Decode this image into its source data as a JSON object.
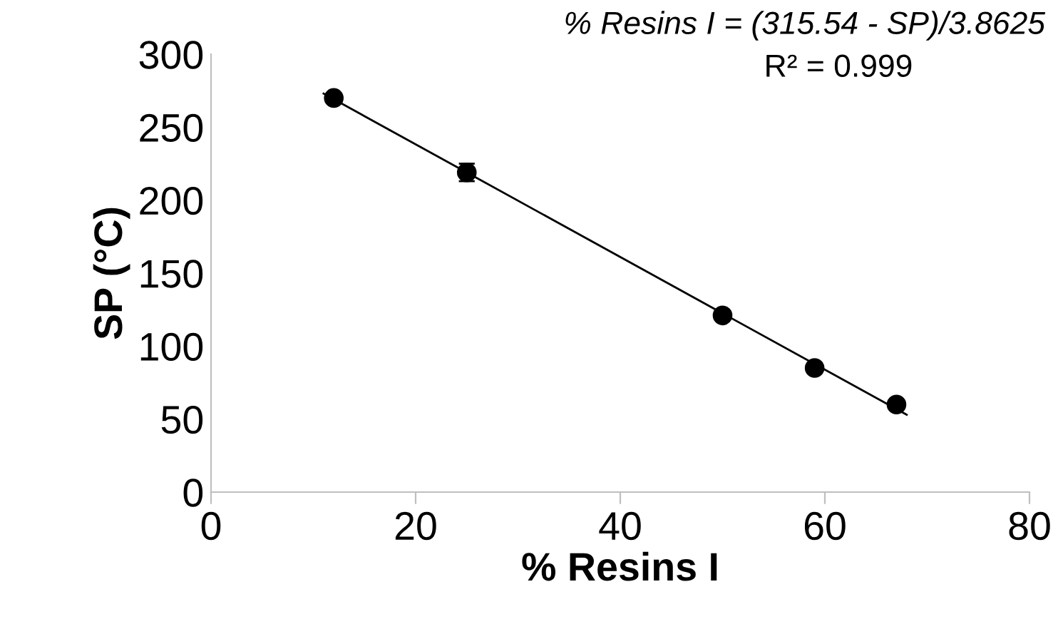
{
  "chart_data": {
    "type": "scatter",
    "xlabel": "% Resins I",
    "ylabel": "SP (°C)",
    "x": [
      12,
      25,
      50,
      59,
      67
    ],
    "series": [
      {
        "color": "#000000",
        "values": [
          270,
          219,
          121,
          85,
          60
        ],
        "errors": [
          null,
          6,
          null,
          null,
          null
        ],
        "marker": "circle"
      },
      {
        "type": "line",
        "color": "#000000",
        "x": [
          11,
          68
        ],
        "values": [
          273,
          53
        ],
        "marker": "none"
      }
    ],
    "xlim": [
      0,
      80
    ],
    "xticks": [
      0,
      20,
      40,
      60,
      80
    ],
    "ylim": [
      0,
      300
    ],
    "yticks": [
      0,
      50,
      100,
      150,
      200,
      250,
      300
    ],
    "grid": false,
    "annotations": [
      "% Resins I = (315.54 - SP)/3.8625",
      "R² = 0.999"
    ]
  }
}
